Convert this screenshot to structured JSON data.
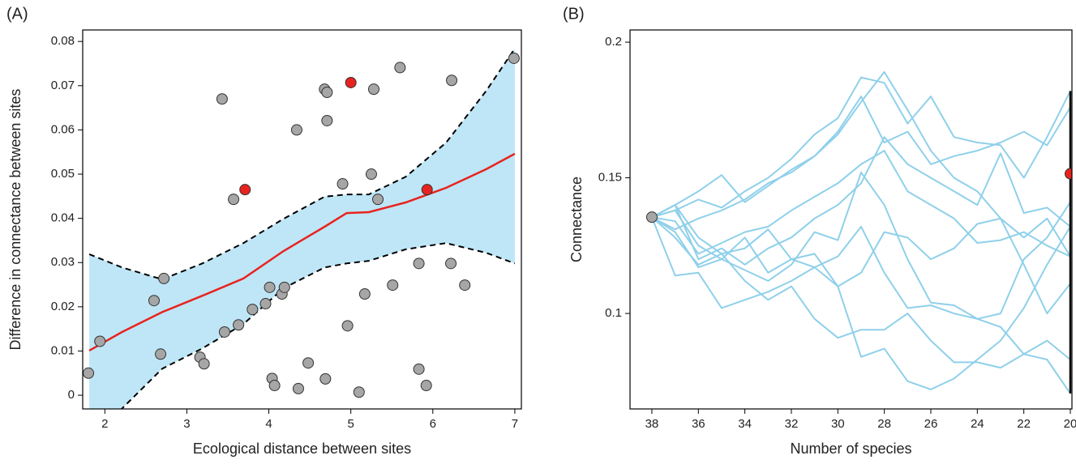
{
  "chart_data": [
    {
      "type": "scatter",
      "title": "(A)",
      "x_label": "Ecological distance between sites",
      "y_label": "Difference in connectance between sites",
      "xlim": [
        1.73,
        7.08
      ],
      "ylim": [
        -0.0031,
        0.0826
      ],
      "xticks": [
        2,
        3,
        4,
        5,
        6,
        7
      ],
      "yticks": [
        0,
        0.01,
        0.02,
        0.03,
        0.04,
        0.05,
        0.06,
        0.07,
        0.08
      ],
      "series": [
        {
          "color": "#a6a6a6",
          "x": [
            1.8,
            1.94,
            2.6,
            2.72,
            2.68,
            3.16,
            3.21,
            3.43,
            3.46,
            3.57,
            3.63,
            3.8,
            3.96,
            4.01,
            4.04,
            4.07,
            4.16,
            4.19,
            4.34,
            4.36,
            4.48,
            4.68,
            4.71,
            4.71,
            4.69,
            4.9,
            4.96,
            5.1,
            5.17,
            5.25,
            5.28,
            5.33,
            5.51,
            5.6,
            5.83,
            5.83,
            5.92,
            6.23,
            6.22,
            6.39,
            6.99
          ],
          "values": [
            0.005,
            0.0122,
            0.0214,
            0.0264,
            0.0093,
            0.0086,
            0.0071,
            0.067,
            0.0143,
            0.0443,
            0.0159,
            0.0194,
            0.0207,
            0.0244,
            0.0038,
            0.0022,
            0.0229,
            0.0244,
            0.06,
            0.0015,
            0.0073,
            0.0692,
            0.0685,
            0.0621,
            0.0037,
            0.0478,
            0.0157,
            0.0007,
            0.0229,
            0.05,
            0.0692,
            0.0443,
            0.0249,
            0.0741,
            0.0298,
            0.0059,
            0.0022,
            0.0712,
            0.0298,
            0.0249,
            0.0762
          ]
        },
        {
          "color": "#e8231f",
          "x": [
            3.71,
            5.0,
            5.93
          ],
          "values": [
            0.0465,
            0.0707,
            0.0465
          ]
        }
      ],
      "smooth": {
        "color": "#e8231f",
        "band_color": "#bfe6f7",
        "x": [
          1.81,
          2.21,
          2.7,
          3.19,
          3.69,
          4.18,
          4.68,
          4.95,
          5.22,
          5.67,
          6.16,
          6.65,
          7.0
        ],
        "values": [
          0.0101,
          0.0143,
          0.0188,
          0.0225,
          0.0264,
          0.0326,
          0.0381,
          0.0412,
          0.0414,
          0.0436,
          0.0469,
          0.0511,
          0.0546
        ],
        "lower": [
          -0.012,
          -0.003,
          0.006,
          0.0106,
          0.0161,
          0.0242,
          0.0289,
          0.0298,
          0.0304,
          0.033,
          0.0344,
          0.0322,
          0.0298
        ],
        "upper": [
          0.0319,
          0.0289,
          0.0262,
          0.0298,
          0.0344,
          0.0399,
          0.0449,
          0.0454,
          0.0454,
          0.0494,
          0.0571,
          0.0688,
          0.0784
        ]
      }
    },
    {
      "type": "line",
      "title": "(B)",
      "x_label": "Number of species",
      "y_label": "Connectance",
      "xlim": [
        38.94,
        19.93
      ],
      "ylim": [
        0.0648,
        0.2045
      ],
      "xticks": [
        38,
        36,
        34,
        32,
        30,
        28,
        26,
        24,
        22,
        20
      ],
      "yticks": [
        0.1,
        0.15,
        0.2
      ],
      "x": [
        38,
        37,
        36,
        35,
        34,
        33,
        32,
        31,
        30,
        29,
        28,
        27,
        26,
        25,
        24,
        23,
        22,
        21,
        20
      ],
      "series": [
        {
          "color": "#8fd0ea",
          "values": [
            0.1355,
            0.14,
            0.145,
            0.151,
            0.141,
            0.147,
            0.153,
            0.158,
            0.166,
            0.178,
            0.189,
            0.175,
            0.16,
            0.15,
            0.145,
            0.135,
            0.128,
            0.135,
            0.121
          ]
        },
        {
          "color": "#8fd0ea",
          "values": [
            0.1355,
            0.138,
            0.142,
            0.139,
            0.145,
            0.15,
            0.157,
            0.166,
            0.172,
            0.187,
            0.185,
            0.17,
            0.18,
            0.165,
            0.163,
            0.162,
            0.15,
            0.165,
            0.182
          ]
        },
        {
          "color": "#8fd0ea",
          "values": [
            0.1355,
            0.131,
            0.135,
            0.138,
            0.142,
            0.148,
            0.152,
            0.158,
            0.167,
            0.18,
            0.163,
            0.167,
            0.155,
            0.158,
            0.16,
            0.163,
            0.167,
            0.162,
            0.176
          ]
        },
        {
          "color": "#8fd0ea",
          "values": [
            0.1355,
            0.14,
            0.12,
            0.124,
            0.118,
            0.124,
            0.128,
            0.135,
            0.14,
            0.148,
            0.165,
            0.155,
            0.15,
            0.145,
            0.14,
            0.159,
            0.137,
            0.139,
            0.132
          ]
        },
        {
          "color": "#8fd0ea",
          "values": [
            0.1355,
            0.134,
            0.122,
            0.126,
            0.13,
            0.132,
            0.138,
            0.143,
            0.148,
            0.155,
            0.16,
            0.145,
            0.14,
            0.135,
            0.126,
            0.127,
            0.13,
            0.125,
            0.121
          ]
        },
        {
          "color": "#8fd0ea",
          "values": [
            0.1355,
            0.14,
            0.128,
            0.122,
            0.124,
            0.131,
            0.12,
            0.122,
            0.11,
            0.115,
            0.13,
            0.128,
            0.12,
            0.124,
            0.133,
            0.135,
            0.118,
            0.1,
            0.111
          ]
        },
        {
          "color": "#8fd0ea",
          "values": [
            0.1355,
            0.13,
            0.117,
            0.12,
            0.116,
            0.112,
            0.118,
            0.13,
            0.127,
            0.152,
            0.14,
            0.12,
            0.104,
            0.103,
            0.098,
            0.1,
            0.12,
            0.128,
            0.141
          ]
        },
        {
          "color": "#8fd0ea",
          "values": [
            0.1355,
            0.114,
            0.115,
            0.102,
            0.105,
            0.108,
            0.112,
            0.117,
            0.121,
            0.132,
            0.115,
            0.102,
            0.103,
            0.1,
            0.098,
            0.095,
            0.085,
            0.09,
            0.083
          ]
        },
        {
          "color": "#8fd0ea",
          "values": [
            0.1355,
            0.128,
            0.118,
            0.122,
            0.112,
            0.105,
            0.11,
            0.098,
            0.091,
            0.094,
            0.094,
            0.1,
            0.09,
            0.082,
            0.082,
            0.08,
            0.085,
            0.083,
            0.0705
          ]
        },
        {
          "color": "#8fd0ea",
          "values": [
            0.1355,
            0.138,
            0.125,
            0.12,
            0.128,
            0.115,
            0.12,
            0.117,
            0.11,
            0.084,
            0.087,
            0.075,
            0.072,
            0.076,
            0.083,
            0.09,
            0.102,
            0.118,
            0.132
          ]
        }
      ],
      "start": {
        "x": 38,
        "value": 0.1355,
        "color": "#a6a6a6"
      },
      "end": {
        "x": 20,
        "value": 0.1515,
        "color": "#e8231f"
      },
      "range": {
        "x": 20,
        "values": [
          0.0705,
          0.182
        ],
        "color": "#000000"
      }
    }
  ]
}
